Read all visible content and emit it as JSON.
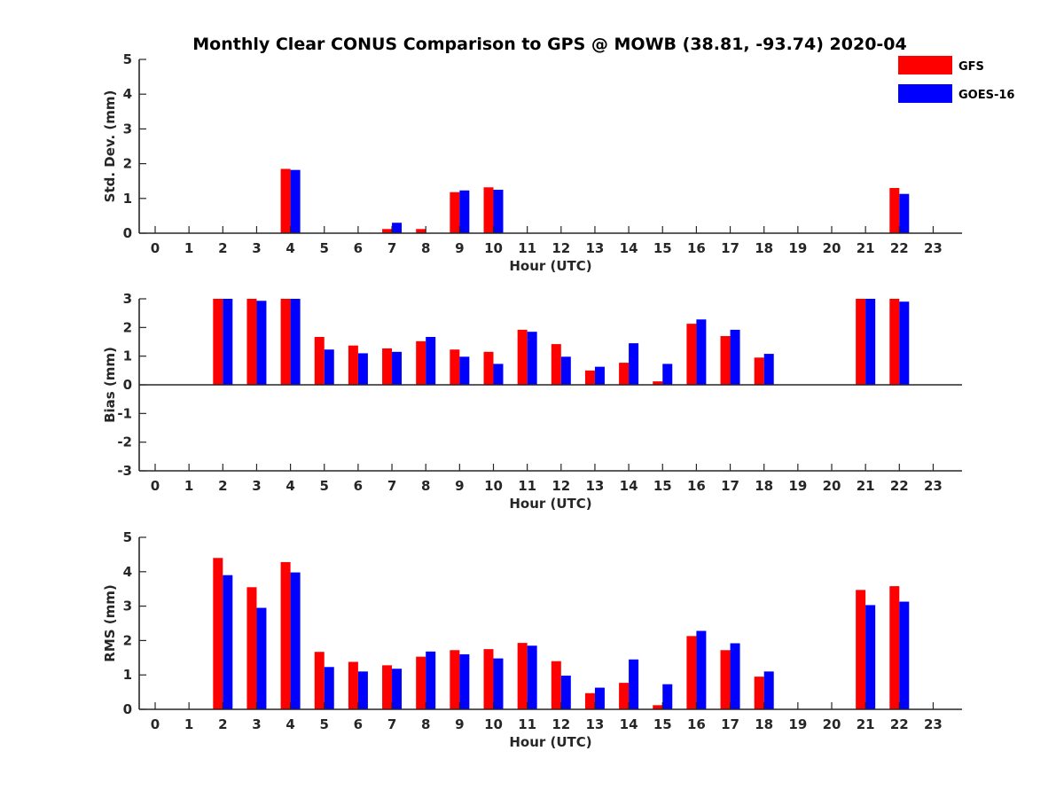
{
  "chart_data": {
    "type": "bar",
    "title": "Monthly Clear CONUS Comparison to GPS @ MOWB (38.81, -93.74) 2020-04",
    "legend": {
      "placement": "top-right",
      "entries": [
        {
          "name": "GFS",
          "color": "#ff0000"
        },
        {
          "name": "GOES-16",
          "color": "#0000ff"
        }
      ]
    },
    "x_categories": [
      "0",
      "1",
      "2",
      "3",
      "4",
      "5",
      "6",
      "7",
      "8",
      "9",
      "10",
      "11",
      "12",
      "13",
      "14",
      "15",
      "16",
      "17",
      "18",
      "19",
      "20",
      "21",
      "22",
      "23"
    ],
    "panels": [
      {
        "id": "stddev",
        "ylabel": "Std. Dev. (mm)",
        "xlabel": "Hour (UTC)",
        "ylim": [
          0,
          5
        ],
        "yticks": [
          0,
          1,
          2,
          3,
          4,
          5
        ],
        "series": [
          {
            "name": "GFS",
            "values": [
              null,
              null,
              null,
              null,
              1.85,
              null,
              null,
              0.12,
              0.12,
              1.18,
              1.32,
              null,
              null,
              null,
              null,
              null,
              null,
              null,
              null,
              null,
              null,
              null,
              1.3,
              null
            ]
          },
          {
            "name": "GOES-16",
            "values": [
              null,
              null,
              null,
              null,
              1.82,
              null,
              null,
              0.3,
              null,
              1.23,
              1.25,
              null,
              null,
              null,
              null,
              null,
              null,
              null,
              null,
              null,
              null,
              null,
              1.13,
              null
            ]
          }
        ]
      },
      {
        "id": "bias",
        "ylabel": "Bias (mm)",
        "xlabel": "Hour (UTC)",
        "ylim": [
          -3,
          3
        ],
        "yticks": [
          -3,
          -2,
          -1,
          0,
          1,
          2,
          3
        ],
        "series": [
          {
            "name": "GFS",
            "values": [
              null,
              null,
              3.0,
              3.0,
              3.0,
              1.67,
              1.37,
              1.27,
              1.52,
              1.23,
              1.15,
              1.92,
              1.42,
              0.5,
              0.77,
              0.12,
              2.13,
              1.7,
              0.95,
              null,
              null,
              3.0,
              3.0,
              null
            ]
          },
          {
            "name": "GOES-16",
            "values": [
              null,
              null,
              3.0,
              2.93,
              3.0,
              1.23,
              1.1,
              1.15,
              1.67,
              0.98,
              0.73,
              1.85,
              0.98,
              0.63,
              1.45,
              0.73,
              2.28,
              1.92,
              1.08,
              null,
              null,
              3.0,
              2.9,
              null
            ]
          }
        ]
      },
      {
        "id": "rms",
        "ylabel": "RMS (mm)",
        "xlabel": "Hour (UTC)",
        "ylim": [
          0,
          5
        ],
        "yticks": [
          0,
          1,
          2,
          3,
          4,
          5
        ],
        "series": [
          {
            "name": "GFS",
            "values": [
              null,
              null,
              4.4,
              3.55,
              4.28,
              1.67,
              1.38,
              1.28,
              1.53,
              1.72,
              1.75,
              1.93,
              1.4,
              0.47,
              0.77,
              0.12,
              2.13,
              1.72,
              0.95,
              null,
              null,
              3.47,
              3.58,
              null
            ]
          },
          {
            "name": "GOES-16",
            "values": [
              null,
              null,
              3.9,
              2.95,
              3.98,
              1.23,
              1.1,
              1.18,
              1.68,
              1.6,
              1.48,
              1.85,
              0.98,
              0.63,
              1.45,
              0.73,
              2.28,
              1.92,
              1.1,
              null,
              null,
              3.03,
              3.13,
              null
            ]
          }
        ]
      }
    ]
  }
}
